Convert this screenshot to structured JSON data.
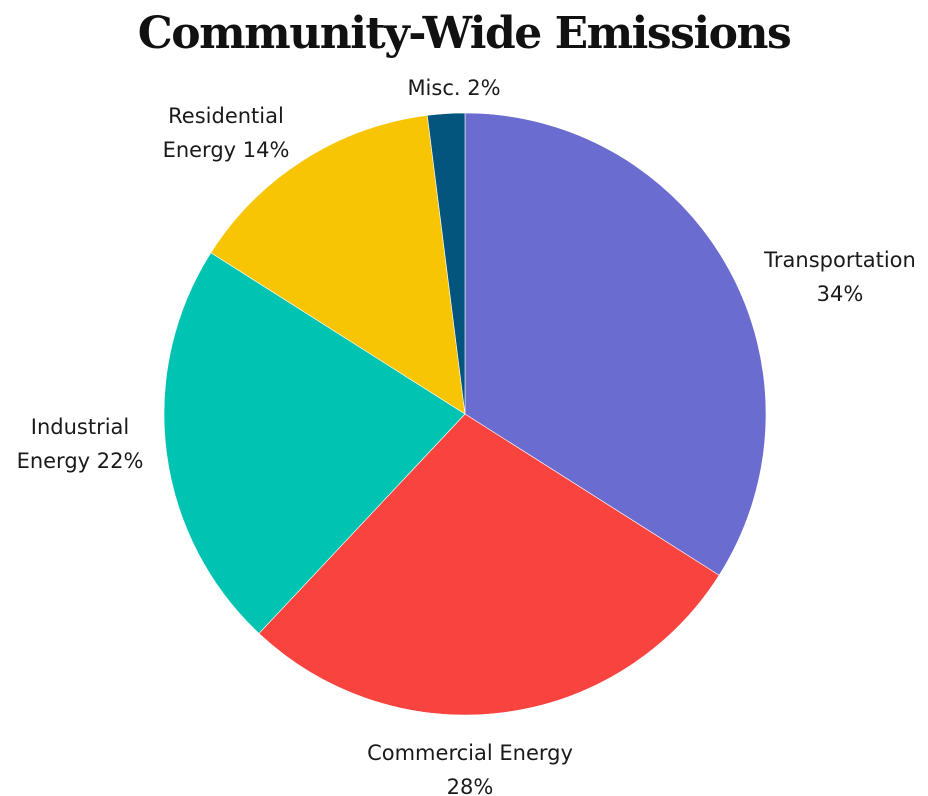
{
  "chart_data": {
    "type": "pie",
    "title": "Community-Wide Emissions",
    "slices": [
      {
        "name": "Transportation",
        "value": 34,
        "color": "#6b6ccf",
        "label_lines": [
          "Transportation",
          "34%"
        ]
      },
      {
        "name": "Commercial Energy",
        "value": 28,
        "color": "#f8433e",
        "label_lines": [
          "Commercial Energy",
          "28%"
        ]
      },
      {
        "name": "Industrial Energy",
        "value": 22,
        "color": "#00c4b1",
        "label_lines": [
          "Industrial",
          "Energy 22%"
        ]
      },
      {
        "name": "Residential Energy",
        "value": 14,
        "color": "#f8c505",
        "label_lines": [
          "Residential",
          "Energy 14%"
        ]
      },
      {
        "name": "Misc.",
        "value": 2,
        "color": "#03557e",
        "label_lines": [
          "Misc. 2%"
        ]
      }
    ]
  }
}
